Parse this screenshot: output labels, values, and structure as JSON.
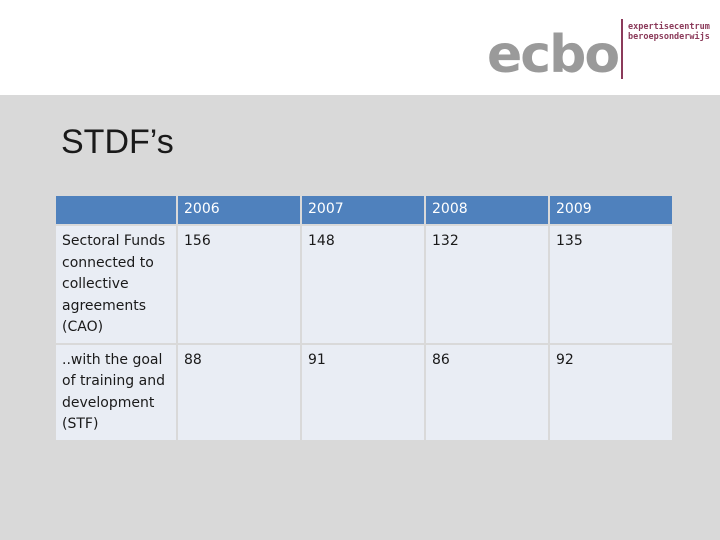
{
  "logo": {
    "word": "ecbo",
    "tagline_line1": "expertisecentrum",
    "tagline_line2": "beroepsonderwijs"
  },
  "slide": {
    "title": "STDF’s"
  },
  "table": {
    "headers": [
      "",
      "2006",
      "2007",
      "2008",
      "2009"
    ],
    "rows": [
      {
        "label": "Sectoral Funds connected to collective agreements (CAO)",
        "values": [
          "156",
          "148",
          "132",
          "135"
        ]
      },
      {
        "label": "..with the goal of training and development (STF)",
        "values": [
          "88",
          "91",
          "86",
          "92"
        ]
      }
    ]
  }
}
